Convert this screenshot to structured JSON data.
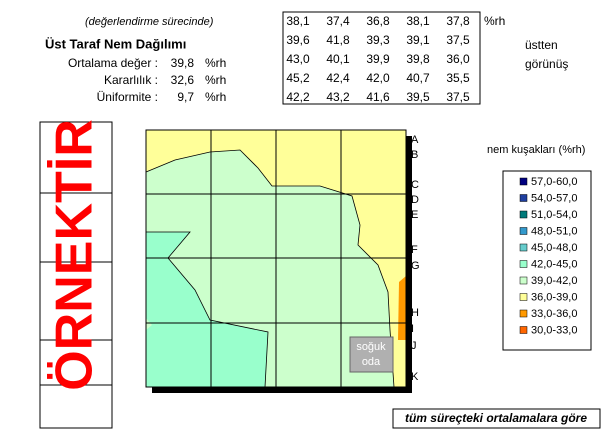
{
  "header": {
    "note": "(değerlendirme sürecinde)",
    "title": "Üst Taraf Nem Dağılımı",
    "stats": [
      {
        "label": "Ortalama değer :",
        "value": "39,8",
        "unit": "%rh"
      },
      {
        "label": "Kararlılık :",
        "value": "32,6",
        "unit": "%rh"
      },
      {
        "label": "Üniformite :",
        "value": "9,7",
        "unit": "%rh"
      }
    ]
  },
  "table": {
    "unit": "%rh",
    "rows": [
      [
        "38,1",
        "37,4",
        "36,8",
        "38,1",
        "37,8"
      ],
      [
        "39,6",
        "41,8",
        "39,3",
        "39,1",
        "37,5"
      ],
      [
        "43,0",
        "40,1",
        "39,9",
        "39,8",
        "36,0"
      ],
      [
        "45,2",
        "42,4",
        "42,0",
        "40,7",
        "35,5"
      ],
      [
        "42,2",
        "43,2",
        "41,6",
        "39,5",
        "37,5"
      ]
    ]
  },
  "view": [
    "üstten",
    "görünüş"
  ],
  "watermark": "ÖRNEKTİR",
  "map": {
    "row_letters": [
      "A",
      "B",
      "C",
      "D",
      "E",
      "F",
      "G",
      "H",
      "I",
      "J",
      "K"
    ],
    "room_label": [
      "soğuk",
      "oda"
    ]
  },
  "legend": {
    "title": "nem kuşakları (%rh)",
    "entries": [
      {
        "label": "57,0-60,0",
        "color": "#000080"
      },
      {
        "label": "54,0-57,0",
        "color": "#1f3f9f"
      },
      {
        "label": "51,0-54,0",
        "color": "#007a7a"
      },
      {
        "label": "48,0-51,0",
        "color": "#3399cc"
      },
      {
        "label": "45,0-48,0",
        "color": "#66cccc"
      },
      {
        "label": "42,0-45,0",
        "color": "#99ffcc"
      },
      {
        "label": "39,0-42,0",
        "color": "#ccffcc"
      },
      {
        "label": "36,0-39,0",
        "color": "#ffff99"
      },
      {
        "label": "33,0-36,0",
        "color": "#ff9900"
      },
      {
        "label": "30,0-33,0",
        "color": "#ff6600"
      }
    ]
  },
  "footer": "tüm süreçteki ortalamalara göre"
}
